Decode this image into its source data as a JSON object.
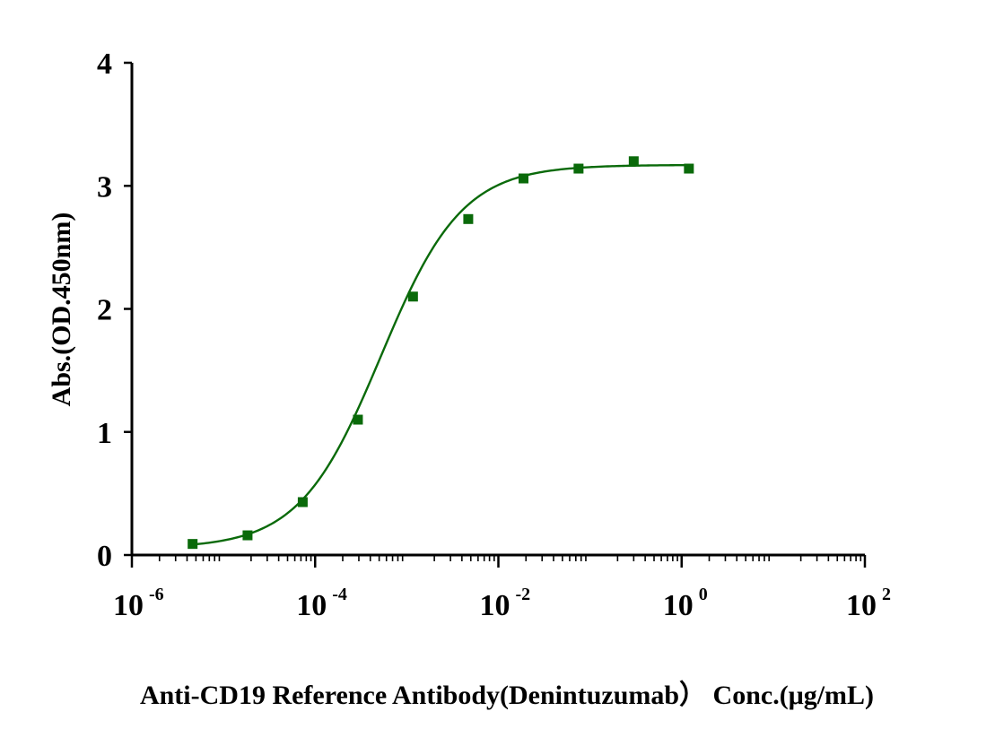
{
  "chart_data": {
    "type": "scatter",
    "xlabel": "Anti-CD19 Reference Antibody(Denintuzumab） Conc.(μg/mL)",
    "ylabel": "Abs.(OD.450nm)",
    "x_scale": "log10",
    "xlim": [
      1e-06,
      100
    ],
    "ylim": [
      0,
      4
    ],
    "grid": false,
    "legend": "none",
    "x_ticks": [
      {
        "base": "10",
        "exp": "-6",
        "value": 1e-06
      },
      {
        "base": "10",
        "exp": "-4",
        "value": 0.0001
      },
      {
        "base": "10",
        "exp": "-2",
        "value": 0.01
      },
      {
        "base": "10",
        "exp": "0",
        "value": 1
      },
      {
        "base": "10",
        "exp": "2",
        "value": 100
      }
    ],
    "y_ticks": [
      "0",
      "1",
      "2",
      "3",
      "4"
    ],
    "color": "#0a6a0a",
    "series": [
      {
        "x": [
          4.6e-06,
          1.83e-05,
          7.32e-05,
          0.000293,
          0.00117,
          0.00469,
          0.0188,
          0.075,
          0.3,
          1.2
        ],
        "y": [
          0.09,
          0.16,
          0.43,
          1.1,
          2.1,
          2.73,
          3.06,
          3.14,
          3.2,
          3.14
        ],
        "marker": "square",
        "fit": "four-parameter logistic"
      }
    ]
  }
}
